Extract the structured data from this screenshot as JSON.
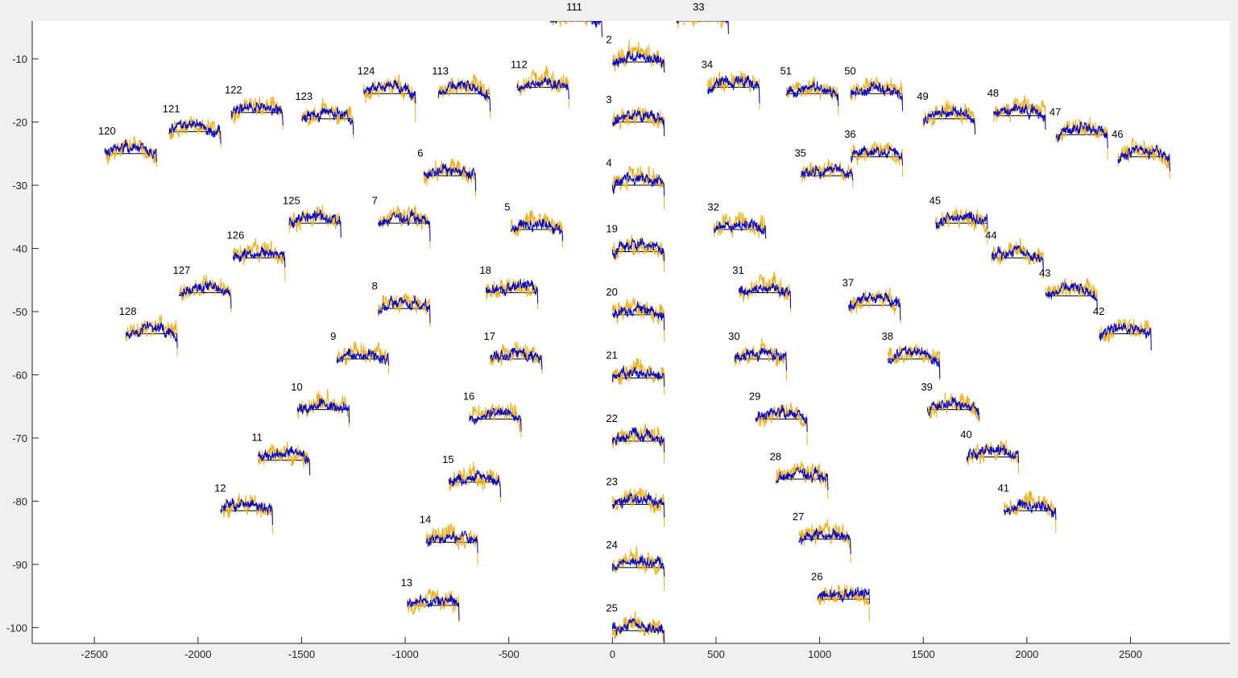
{
  "chart_data": {
    "type": "line",
    "title": "",
    "xlabel": "",
    "ylabel": "",
    "xlim": [
      -2800,
      2980
    ],
    "ylim": [
      -102.5,
      -4
    ],
    "xticks": [
      -2500,
      -2000,
      -1500,
      -1000,
      -500,
      0,
      500,
      1000,
      1500,
      2000,
      2500
    ],
    "yticks": [
      -10,
      -20,
      -30,
      -40,
      -50,
      -60,
      -70,
      -80,
      -90,
      -100
    ],
    "grid": false,
    "legend": "none",
    "series_colors": {
      "trace_a": "#edb120",
      "trace_b": "#0000cc",
      "baseline": "#000000"
    },
    "trace_width": 250,
    "channels": [
      {
        "id": "111",
        "x": -300,
        "y": -4
      },
      {
        "id": "33",
        "x": 310,
        "y": -4
      },
      {
        "id": "2",
        "x": 0,
        "y": -10.5
      },
      {
        "id": "3",
        "x": 0,
        "y": -20
      },
      {
        "id": "4",
        "x": 0,
        "y": -30
      },
      {
        "id": "19",
        "x": 0,
        "y": -40.5
      },
      {
        "id": "20",
        "x": 0,
        "y": -50.5
      },
      {
        "id": "21",
        "x": 0,
        "y": -60.5
      },
      {
        "id": "22",
        "x": 0,
        "y": -70.5
      },
      {
        "id": "23",
        "x": 0,
        "y": -80.5
      },
      {
        "id": "24",
        "x": 0,
        "y": -90.5
      },
      {
        "id": "25",
        "x": 0,
        "y": -100.5
      },
      {
        "id": "112",
        "x": -460,
        "y": -14.5
      },
      {
        "id": "113",
        "x": -840,
        "y": -15.5
      },
      {
        "id": "124",
        "x": -1200,
        "y": -15.5
      },
      {
        "id": "122",
        "x": -1840,
        "y": -18.5
      },
      {
        "id": "123",
        "x": -1500,
        "y": -19.5
      },
      {
        "id": "121",
        "x": -2140,
        "y": -21.5
      },
      {
        "id": "120",
        "x": -2450,
        "y": -25
      },
      {
        "id": "6",
        "x": -910,
        "y": -28.5
      },
      {
        "id": "125",
        "x": -1560,
        "y": -36
      },
      {
        "id": "7",
        "x": -1130,
        "y": -36
      },
      {
        "id": "5",
        "x": -490,
        "y": -37
      },
      {
        "id": "126",
        "x": -1830,
        "y": -41.5
      },
      {
        "id": "18",
        "x": -610,
        "y": -47
      },
      {
        "id": "127",
        "x": -2090,
        "y": -47
      },
      {
        "id": "8",
        "x": -1130,
        "y": -49.5
      },
      {
        "id": "128",
        "x": -2350,
        "y": -53.5
      },
      {
        "id": "9",
        "x": -1330,
        "y": -57.5
      },
      {
        "id": "17",
        "x": -590,
        "y": -57.5
      },
      {
        "id": "10",
        "x": -1520,
        "y": -65.5
      },
      {
        "id": "16",
        "x": -690,
        "y": -67
      },
      {
        "id": "11",
        "x": -1710,
        "y": -73.5
      },
      {
        "id": "15",
        "x": -790,
        "y": -77
      },
      {
        "id": "12",
        "x": -1890,
        "y": -81.5
      },
      {
        "id": "14",
        "x": -900,
        "y": -86.5
      },
      {
        "id": "13",
        "x": -990,
        "y": -96.5
      },
      {
        "id": "34",
        "x": 460,
        "y": -14.5
      },
      {
        "id": "51",
        "x": 840,
        "y": -15.5
      },
      {
        "id": "50",
        "x": 1150,
        "y": -15.5
      },
      {
        "id": "49",
        "x": 1500,
        "y": -19.5
      },
      {
        "id": "48",
        "x": 1840,
        "y": -19
      },
      {
        "id": "47",
        "x": 2140,
        "y": -22
      },
      {
        "id": "46",
        "x": 2440,
        "y": -25.5
      },
      {
        "id": "36",
        "x": 1150,
        "y": -25.5
      },
      {
        "id": "35",
        "x": 910,
        "y": -28.5
      },
      {
        "id": "32",
        "x": 490,
        "y": -37
      },
      {
        "id": "45",
        "x": 1560,
        "y": -36
      },
      {
        "id": "44",
        "x": 1830,
        "y": -41.5
      },
      {
        "id": "31",
        "x": 610,
        "y": -47
      },
      {
        "id": "43",
        "x": 2090,
        "y": -47.5
      },
      {
        "id": "37",
        "x": 1140,
        "y": -49
      },
      {
        "id": "42",
        "x": 2350,
        "y": -53.5
      },
      {
        "id": "30",
        "x": 590,
        "y": -57.5
      },
      {
        "id": "38",
        "x": 1330,
        "y": -57.5
      },
      {
        "id": "29",
        "x": 690,
        "y": -67
      },
      {
        "id": "39",
        "x": 1520,
        "y": -65.5
      },
      {
        "id": "40",
        "x": 1710,
        "y": -73
      },
      {
        "id": "28",
        "x": 790,
        "y": -76.5
      },
      {
        "id": "41",
        "x": 1890,
        "y": -81.5
      },
      {
        "id": "27",
        "x": 900,
        "y": -86
      },
      {
        "id": "26",
        "x": 990,
        "y": -95.5
      }
    ]
  }
}
